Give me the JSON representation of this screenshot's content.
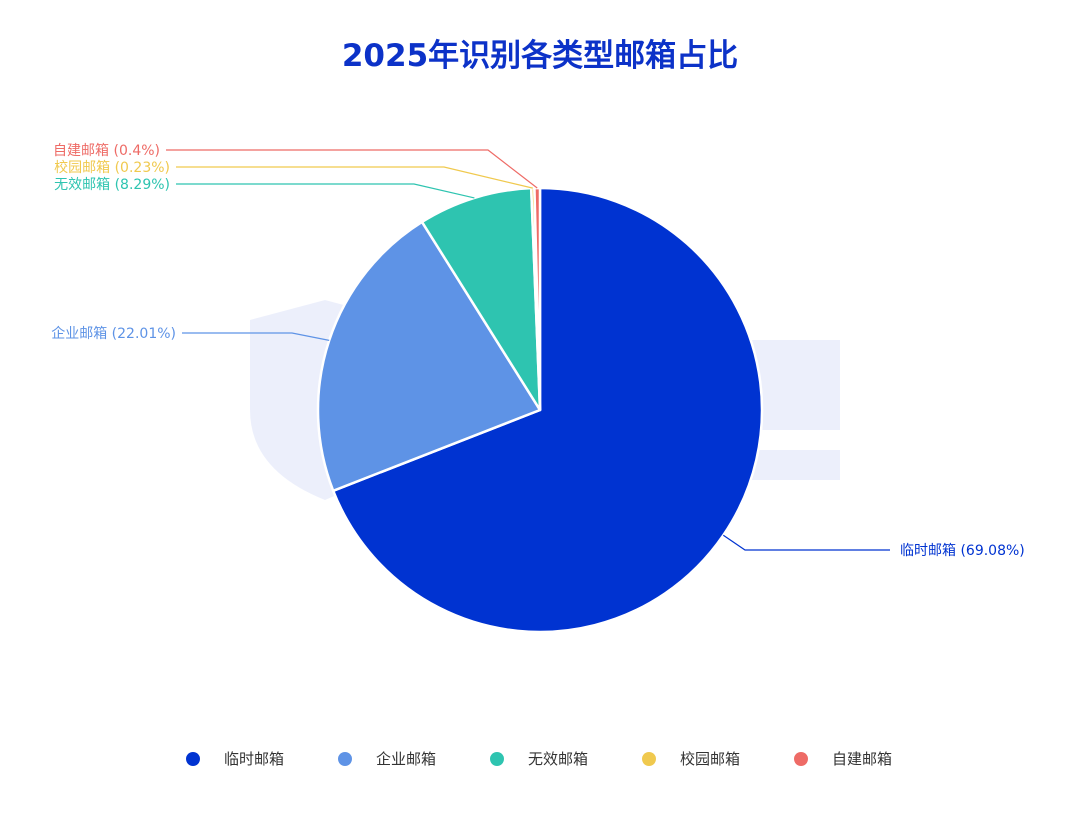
{
  "chart_data": {
    "type": "pie",
    "title": "2025年识别各类型邮箱占比",
    "slices": [
      {
        "name": "临时邮箱",
        "value": 69.08,
        "label": "临时邮箱 (69.08%)",
        "color": "#0033d1"
      },
      {
        "name": "企业邮箱",
        "value": 22.01,
        "label": "企业邮箱 (22.01%)",
        "color": "#5e93e6"
      },
      {
        "name": "无效邮箱",
        "value": 8.29,
        "label": "无效邮箱 (8.29%)",
        "color": "#2ec4b0"
      },
      {
        "name": "校园邮箱",
        "value": 0.23,
        "label": "校园邮箱 (0.23%)",
        "color": "#f0c94e"
      },
      {
        "name": "自建邮箱",
        "value": 0.4,
        "label": "自建邮箱 (0.4%)",
        "color": "#ee6b66"
      }
    ],
    "legend": [
      "临时邮箱",
      "企业邮箱",
      "无效邮箱",
      "校园邮箱",
      "自建邮箱"
    ],
    "legend_position": "bottom"
  }
}
